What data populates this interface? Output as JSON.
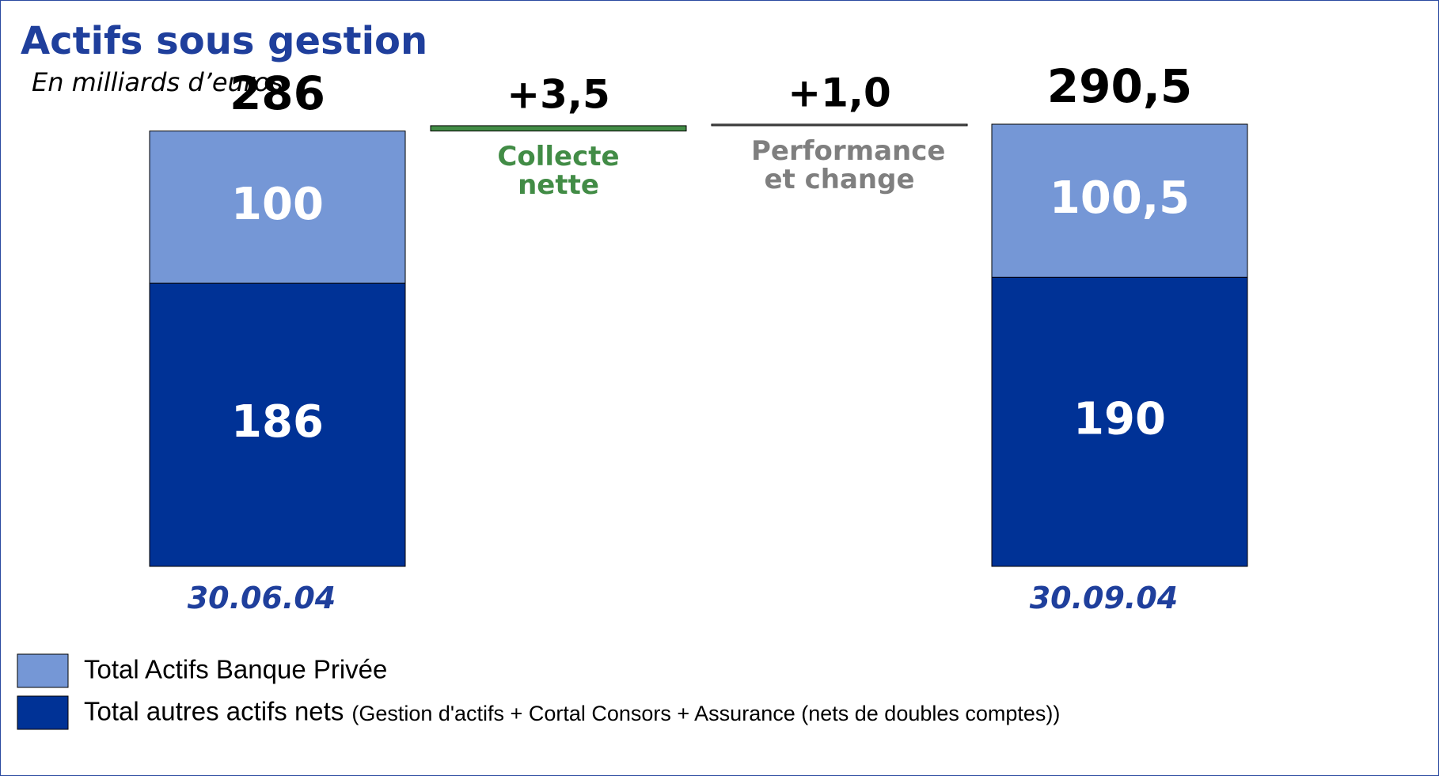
{
  "chart_data": {
    "type": "waterfall",
    "title": "Actifs sous gestion",
    "subtitle": "En milliards d’euros",
    "categories": [
      "30.06.04",
      "Collecte nette",
      "Performance et change",
      "30.09.04"
    ],
    "series": [
      {
        "name": "Total autres actifs nets",
        "color": "#003296",
        "values": [
          186,
          null,
          null,
          190
        ],
        "value_labels": [
          "186",
          null,
          null,
          "190"
        ]
      },
      {
        "name": "Total Actifs Banque Privée",
        "color": "#7597d6",
        "values": [
          100,
          null,
          null,
          100.5
        ],
        "value_labels": [
          "100",
          null,
          null,
          "100,5"
        ]
      }
    ],
    "steps": {
      "values": [
        null,
        3.5,
        1.0,
        null
      ],
      "value_labels": [
        null,
        "+3,5",
        "+1,0",
        null
      ],
      "colors": [
        null,
        "#428c46",
        "#7f7f7f",
        null
      ]
    },
    "totals": {
      "values": [
        286,
        null,
        null,
        290.5
      ],
      "value_labels": [
        "286",
        null,
        null,
        "290,5"
      ]
    },
    "legend_note": "(Gestion d'actifs + Cortal Consors + Assurance (nets de doubles comptes))"
  }
}
